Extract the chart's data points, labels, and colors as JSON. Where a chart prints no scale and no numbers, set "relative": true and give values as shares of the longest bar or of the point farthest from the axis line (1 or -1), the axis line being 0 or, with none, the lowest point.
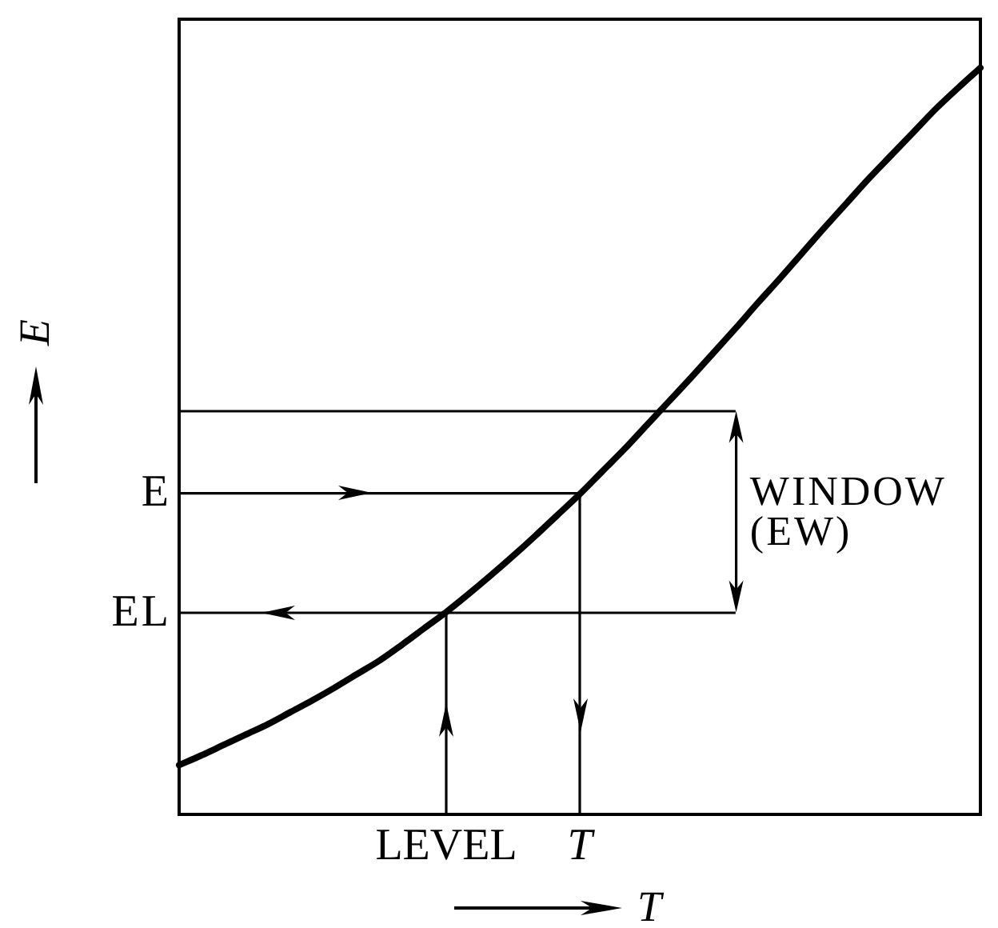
{
  "chart_data": {
    "type": "line",
    "relative": true,
    "xlabel": "T",
    "ylabel": "E",
    "marker": "none",
    "categories": [
      null,
      null,
      null,
      null,
      null,
      null,
      null,
      null,
      null,
      null,
      null,
      null,
      "LEVEL",
      null,
      null,
      null,
      null,
      null,
      "T",
      null,
      null,
      null,
      null,
      null,
      null,
      null,
      null,
      null,
      null,
      null,
      null,
      null,
      null,
      null,
      null,
      null,
      null
    ],
    "series": [
      {
        "color": "#000000",
        "values": [
          0.066,
          0.079,
          0.093,
          0.107,
          0.121,
          0.137,
          0.153,
          0.17,
          0.188,
          0.206,
          0.227,
          0.249,
          0.271,
          0.295,
          0.32,
          0.346,
          0.373,
          0.401,
          0.429,
          0.459,
          0.489,
          0.521,
          0.553,
          0.585,
          0.618,
          0.651,
          0.685,
          0.718,
          0.752,
          0.786,
          0.819,
          0.852,
          0.883,
          0.914,
          0.945,
          0.973,
          1
        ]
      },
      {
        "color": "#000000",
        "values": [
          0.54,
          0.54,
          0.54,
          0.54,
          0.54,
          0.54,
          0.54,
          0.54,
          0.54,
          0.54,
          0.54,
          0.54,
          0.54,
          0.54,
          0.54,
          0.54,
          0.54,
          0.54,
          0.54,
          0.54,
          0.54,
          0.54,
          0.54,
          0.54,
          0.54,
          0.54,
          null,
          null,
          null,
          null,
          null,
          null,
          null,
          null,
          null,
          null,
          null
        ]
      },
      {
        "name": "E",
        "color": "#000000",
        "values": [
          0.43,
          0.43,
          0.43,
          0.43,
          0.43,
          0.43,
          0.43,
          0.43,
          0.43,
          0.43,
          0.43,
          0.43,
          0.43,
          0.43,
          0.43,
          0.43,
          0.43,
          0.43,
          0.43,
          null,
          null,
          null,
          null,
          null,
          null,
          null,
          null,
          null,
          null,
          null,
          null,
          null,
          null,
          null,
          null,
          null,
          null
        ]
      },
      {
        "name": "EL",
        "color": "#000000",
        "values": [
          0.27,
          0.27,
          0.27,
          0.27,
          0.27,
          0.27,
          0.27,
          0.27,
          0.27,
          0.27,
          0.27,
          0.27,
          0.27,
          0.27,
          0.27,
          0.27,
          0.27,
          0.27,
          0.27,
          0.27,
          0.27,
          0.27,
          0.27,
          0.27,
          0.27,
          0.27,
          null,
          null,
          null,
          null,
          null,
          null,
          null,
          null,
          null,
          null,
          null
        ]
      },
      {
        "color": "#000000",
        "x": [
          "LEVEL",
          "LEVEL"
        ],
        "values": [
          0,
          0.27
        ]
      },
      {
        "color": "#000000",
        "x": [
          "T",
          "T"
        ],
        "values": [
          0.43,
          0
        ]
      }
    ],
    "annotations": [
      "WINDOW (EW)"
    ]
  }
}
